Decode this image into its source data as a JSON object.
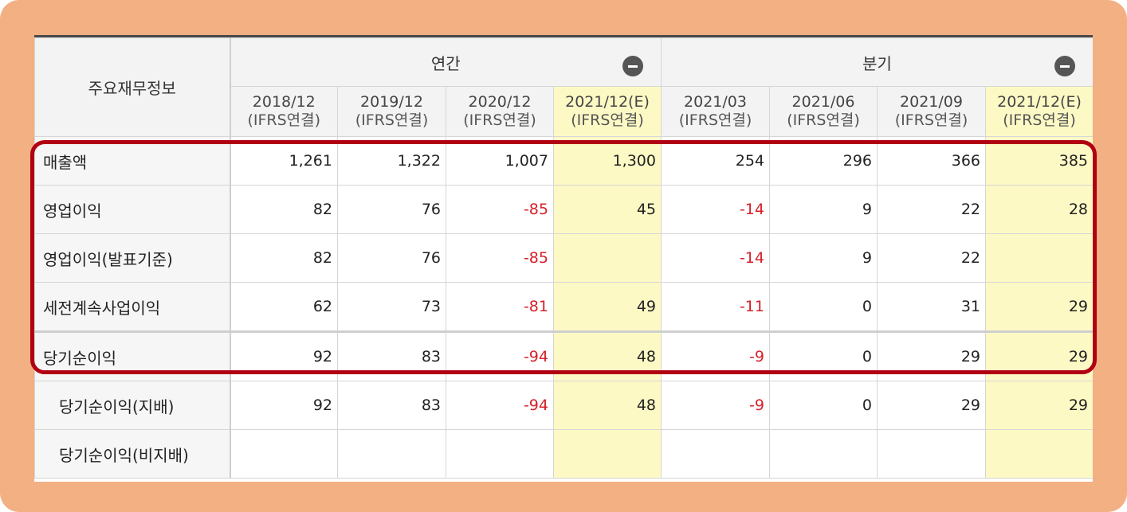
{
  "header": {
    "main_label": "주요재무정보",
    "groups": [
      {
        "label": "연간"
      },
      {
        "label": "분기"
      }
    ],
    "periods": [
      {
        "date": "2018/12",
        "sub": "(IFRS연결)",
        "estimate": false
      },
      {
        "date": "2019/12",
        "sub": "(IFRS연결)",
        "estimate": false
      },
      {
        "date": "2020/12",
        "sub": "(IFRS연결)",
        "estimate": false
      },
      {
        "date": "2021/12(E)",
        "sub": "(IFRS연결)",
        "estimate": true
      },
      {
        "date": "2021/03",
        "sub": "(IFRS연결)",
        "estimate": false
      },
      {
        "date": "2021/06",
        "sub": "(IFRS연결)",
        "estimate": false
      },
      {
        "date": "2021/09",
        "sub": "(IFRS연결)",
        "estimate": false
      },
      {
        "date": "2021/12(E)",
        "sub": "(IFRS연결)",
        "estimate": true
      }
    ]
  },
  "rows": [
    {
      "label": "매출액",
      "values": [
        "1,261",
        "1,322",
        "1,007",
        "1,300",
        "254",
        "296",
        "366",
        "385"
      ]
    },
    {
      "label": "영업이익",
      "values": [
        "82",
        "76",
        "-85",
        "45",
        "-14",
        "9",
        "22",
        "28"
      ]
    },
    {
      "label": "영업이익(발표기준)",
      "values": [
        "82",
        "76",
        "-85",
        "",
        "-14",
        "9",
        "22",
        ""
      ]
    },
    {
      "label": "세전계속사업이익",
      "values": [
        "62",
        "73",
        "-81",
        "49",
        "-11",
        "0",
        "31",
        "29"
      ]
    },
    {
      "label": "당기순이익",
      "values": [
        "92",
        "83",
        "-94",
        "48",
        "-9",
        "0",
        "29",
        "29"
      ]
    },
    {
      "label": "당기순이익(지배)",
      "values": [
        "92",
        "83",
        "-94",
        "48",
        "-9",
        "0",
        "29",
        "29"
      ]
    },
    {
      "label": "당기순이익(비지배)",
      "values": [
        "",
        "",
        "",
        "",
        "",
        "",
        "",
        ""
      ]
    }
  ],
  "colors": {
    "negative": "#d6202a",
    "estimate_bg": "#fdf9c5",
    "highlight_border": "#b00012",
    "frame_bg": "#f2b083"
  }
}
